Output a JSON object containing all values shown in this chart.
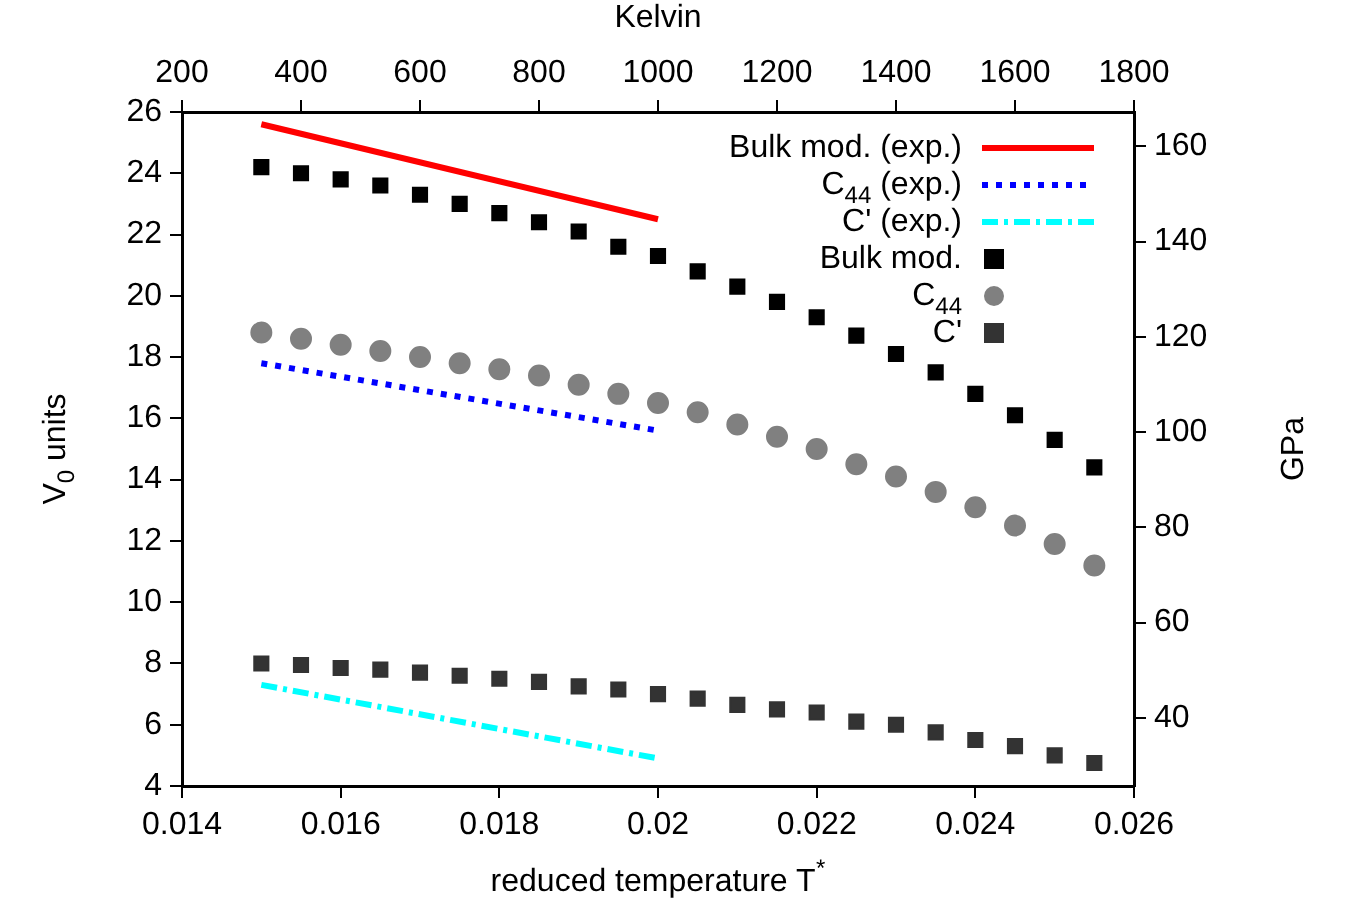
{
  "chart_data": {
    "type": "scatter",
    "xlabel": "reduced temperature T$^{*}$",
    "ylabel": "V$_{0}$ units",
    "x2label": "Kelvin",
    "y2label": "GPa",
    "xlim": [
      0.014,
      0.026
    ],
    "xticks": [
      0.014,
      0.016,
      0.018,
      0.02,
      0.022,
      0.024,
      0.026
    ],
    "ylim": [
      4,
      26
    ],
    "yticks": [
      4,
      6,
      8,
      10,
      12,
      14,
      16,
      18,
      20,
      22,
      24,
      26
    ],
    "x2lim": [
      200,
      1800
    ],
    "x2ticks": [
      200,
      400,
      600,
      800,
      1000,
      1200,
      1400,
      1600,
      1800
    ],
    "y2lim": [
      25.7,
      167.2
    ],
    "y2ticks": [
      40,
      60,
      80,
      100,
      120,
      140,
      160
    ],
    "grid": false,
    "legend": "top right",
    "series": [
      {
        "name": "Bulk mod. (exp.)",
        "type": "line",
        "line_style": "solid",
        "color": "#ff0000",
        "x": [
          0.015,
          0.02
        ],
        "values": [
          25.6,
          22.5
        ]
      },
      {
        "name": "C$_{44}$ (exp.)",
        "type": "line",
        "line_style": "dotted",
        "color": "#0000ff",
        "x": [
          0.015,
          0.02
        ],
        "values": [
          17.8,
          15.6
        ]
      },
      {
        "name": "C' (exp.)",
        "type": "line",
        "line_style": "dashed",
        "color": "#00ffff",
        "x": [
          0.015,
          0.02
        ],
        "values": [
          7.3,
          4.9
        ]
      },
      {
        "name": "Bulk mod.",
        "type": "scatter",
        "marker": "square",
        "color": "#000000",
        "x": [
          0.015,
          0.0155,
          0.016,
          0.0165,
          0.017,
          0.0175,
          0.018,
          0.0185,
          0.019,
          0.0195,
          0.02,
          0.0205,
          0.021,
          0.0215,
          0.022,
          0.0225,
          0.023,
          0.0235,
          0.024,
          0.0245,
          0.025,
          0.0255
        ],
        "values": [
          24.2,
          24.0,
          23.8,
          23.6,
          23.3,
          23.0,
          22.7,
          22.4,
          22.1,
          21.6,
          21.3,
          20.8,
          20.3,
          19.8,
          19.3,
          18.7,
          18.1,
          17.5,
          16.8,
          16.1,
          15.3,
          14.4
        ]
      },
      {
        "name": "C$_{44}$",
        "type": "scatter",
        "marker": "circle",
        "color": "#808080",
        "x": [
          0.015,
          0.0155,
          0.016,
          0.0165,
          0.017,
          0.0175,
          0.018,
          0.0185,
          0.019,
          0.0195,
          0.02,
          0.0205,
          0.021,
          0.0215,
          0.022,
          0.0225,
          0.023,
          0.0235,
          0.024,
          0.0245,
          0.025,
          0.0255
        ],
        "values": [
          18.8,
          18.6,
          18.4,
          18.2,
          18.0,
          17.8,
          17.6,
          17.4,
          17.1,
          16.8,
          16.5,
          16.2,
          15.8,
          15.4,
          15.0,
          14.5,
          14.1,
          13.6,
          13.1,
          12.5,
          11.9,
          11.2
        ]
      },
      {
        "name": "C'",
        "type": "scatter",
        "marker": "square",
        "color": "#333333",
        "x": [
          0.015,
          0.0155,
          0.016,
          0.0165,
          0.017,
          0.0175,
          0.018,
          0.0185,
          0.019,
          0.0195,
          0.02,
          0.0205,
          0.021,
          0.0215,
          0.022,
          0.0225,
          0.023,
          0.0235,
          0.024,
          0.0245,
          0.025,
          0.0255
        ],
        "values": [
          8.0,
          7.95,
          7.85,
          7.8,
          7.7,
          7.6,
          7.5,
          7.4,
          7.25,
          7.15,
          7.0,
          6.85,
          6.65,
          6.5,
          6.4,
          6.1,
          6.0,
          5.75,
          5.5,
          5.3,
          5.0,
          4.75
        ]
      }
    ]
  }
}
